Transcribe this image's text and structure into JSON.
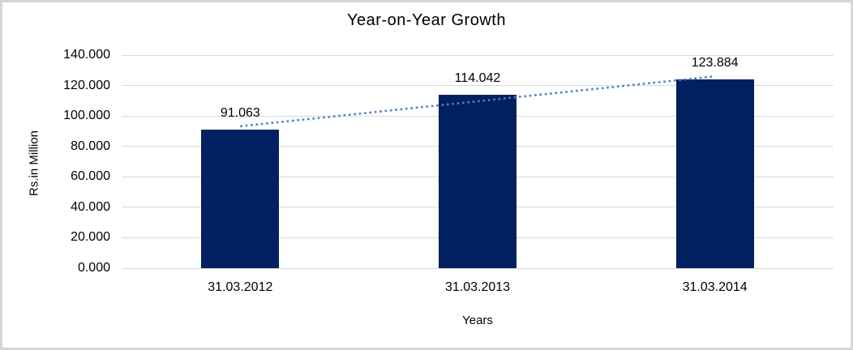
{
  "chart": {
    "title": "Year-on-Year Growth",
    "y_axis_title": "Rs.in Million",
    "x_axis_title": "Years"
  },
  "chart_data": {
    "type": "bar",
    "title": "Year-on-Year Growth",
    "xlabel": "Years",
    "ylabel": "Rs.in Million",
    "categories": [
      "31.03.2012",
      "31.03.2013",
      "31.03.2014"
    ],
    "values": [
      91.063,
      114.042,
      123.884
    ],
    "value_labels": [
      "91.063",
      "114.042",
      "123.884"
    ],
    "ylim": [
      0,
      140
    ],
    "ytick_step": 20,
    "ytick_labels": [
      "0.000",
      "20.000",
      "40.000",
      "60.000",
      "80.000",
      "100.000",
      "120.000",
      "140.000"
    ],
    "grid": true,
    "legend": "none",
    "trendline": {
      "type": "linear",
      "style": "dotted"
    }
  },
  "colors": {
    "bar": "#002060",
    "trendline": "#4f81bd",
    "gridline": "#d9d9d9",
    "frame_border": "#d6d6d6",
    "text": "#000000",
    "background": "#ffffff"
  }
}
